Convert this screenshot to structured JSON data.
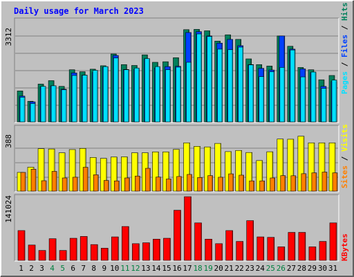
{
  "title": "Daily usage for March 2023",
  "colors": {
    "background": "#c0c0c0",
    "plot_bg": "#c0c0c0",
    "hits": "#00805c",
    "files": "#0040ff",
    "pages": "#00e0ff",
    "visits": "#ffff00",
    "sites": "#ff8000",
    "kbytes": "#ff0000",
    "title_text": "#0000ff",
    "weekend_day": "#008040"
  },
  "chart_data": [
    {
      "type": "bar",
      "title": "Daily usage for March 2023",
      "panel": "hits-files-pages",
      "y_max_label": "3312",
      "ylim": [
        0,
        3312
      ],
      "side_label_parts": [
        "Pages",
        " / ",
        "Files",
        " / ",
        "Hits"
      ],
      "categories": [
        "1",
        "2",
        "3",
        "4",
        "5",
        "6",
        "7",
        "8",
        "9",
        "10",
        "11",
        "12",
        "13",
        "14",
        "15",
        "16",
        "17",
        "18",
        "19",
        "20",
        "21",
        "22",
        "23",
        "24",
        "25",
        "26",
        "27",
        "28",
        "29",
        "30",
        "31"
      ],
      "weekend_days": [
        "4",
        "5",
        "11",
        "12",
        "18",
        "19",
        "25",
        "26"
      ],
      "series": [
        {
          "name": "Hits",
          "values": [
            1080,
            720,
            1320,
            1440,
            1240,
            1820,
            1750,
            1840,
            1960,
            2370,
            2000,
            1970,
            2340,
            2080,
            2100,
            2240,
            3220,
            3230,
            3180,
            2820,
            3040,
            2880,
            2200,
            2000,
            1950,
            3000,
            2640,
            1900,
            1820,
            1470,
            1620
          ]
        },
        {
          "name": "Files",
          "values": [
            900,
            700,
            1220,
            1260,
            1140,
            1710,
            1630,
            1720,
            1910,
            2320,
            1830,
            1830,
            2200,
            1880,
            1930,
            1940,
            3120,
            3150,
            3000,
            2750,
            2880,
            2660,
            2000,
            1870,
            1810,
            3000,
            2540,
            1850,
            1720,
            1240,
            1410
          ]
        },
        {
          "name": "Pages",
          "values": [
            860,
            640,
            1240,
            1260,
            1120,
            1620,
            1630,
            1800,
            1930,
            2230,
            1820,
            1880,
            2210,
            1930,
            1820,
            1910,
            2080,
            3070,
            2980,
            2540,
            2520,
            2610,
            1990,
            1580,
            1750,
            1900,
            2510,
            1570,
            1740,
            1170,
            1460
          ]
        }
      ]
    },
    {
      "type": "bar",
      "panel": "visits-sites",
      "y_max_label": "388",
      "ylim": [
        0,
        388
      ],
      "side_label_parts": [
        "Sites",
        " / ",
        "Visits"
      ],
      "categories": [
        "1",
        "2",
        "3",
        "4",
        "5",
        "6",
        "7",
        "8",
        "9",
        "10",
        "11",
        "12",
        "13",
        "14",
        "15",
        "16",
        "17",
        "18",
        "19",
        "20",
        "21",
        "22",
        "23",
        "24",
        "25",
        "26",
        "27",
        "28",
        "29",
        "30",
        "31"
      ],
      "series": [
        {
          "name": "Visits",
          "values": [
            128,
            164,
            290,
            288,
            262,
            284,
            292,
            230,
            224,
            233,
            234,
            262,
            262,
            268,
            268,
            285,
            330,
            306,
            302,
            326,
            270,
            278,
            264,
            209,
            269,
            356,
            355,
            375,
            330,
            330,
            330
          ]
        },
        {
          "name": "Sites",
          "values": [
            128,
            150,
            71,
            135,
            90,
            95,
            163,
            112,
            73,
            70,
            90,
            103,
            156,
            96,
            83,
            100,
            114,
            93,
            106,
            95,
            118,
            109,
            70,
            70,
            90,
            106,
            105,
            119,
            125,
            130,
            125
          ]
        }
      ]
    },
    {
      "type": "bar",
      "panel": "kbytes",
      "y_max_label": "141024",
      "ylim": [
        0,
        141024
      ],
      "side_label_parts": [
        "KBytes"
      ],
      "categories": [
        "1",
        "2",
        "3",
        "4",
        "5",
        "6",
        "7",
        "8",
        "9",
        "10",
        "11",
        "12",
        "13",
        "14",
        "15",
        "16",
        "17",
        "18",
        "19",
        "20",
        "21",
        "22",
        "23",
        "24",
        "25",
        "26",
        "27",
        "28",
        "29",
        "30",
        "31"
      ],
      "series": [
        {
          "name": "KBytes",
          "values": [
            66000,
            34000,
            22000,
            48000,
            22000,
            49000,
            53000,
            35000,
            27000,
            52000,
            75000,
            37000,
            39000,
            47000,
            49000,
            111000,
            141000,
            83000,
            47000,
            37000,
            66000,
            42000,
            88000,
            52000,
            51000,
            30000,
            62000,
            62000,
            30000,
            42000,
            83000
          ]
        }
      ]
    }
  ]
}
